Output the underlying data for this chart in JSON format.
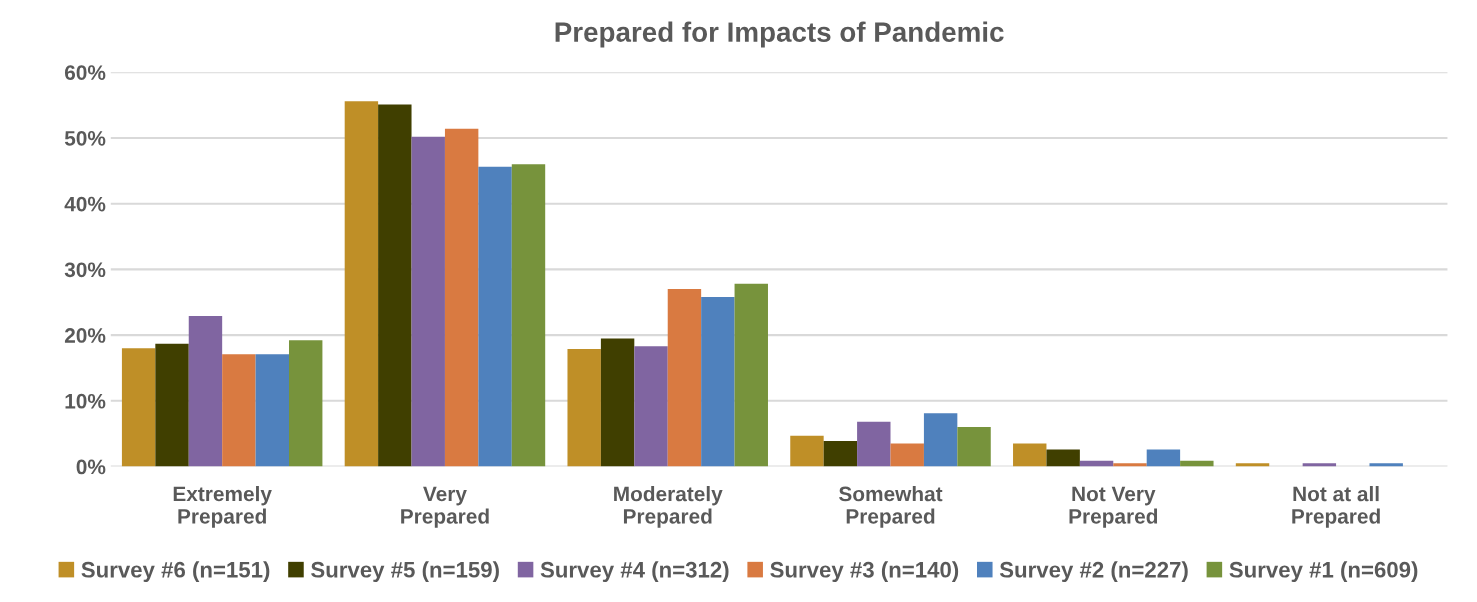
{
  "chart_data": {
    "type": "bar",
    "title": "Prepared for Impacts of Pandemic",
    "categories": [
      "Extremely\nPrepared",
      "Very\nPrepared",
      "Moderately\nPrepared",
      "Somewhat\nPrepared",
      "Not Very\nPrepared",
      "Not at all\nPrepared"
    ],
    "series": [
      {
        "name": "Survey #6 (n=151)",
        "color": "#bf8f27",
        "values": [
          18.0,
          55.6,
          17.9,
          4.7,
          3.5,
          0.5
        ]
      },
      {
        "name": "Survey #5 (n=159)",
        "color": "#403f00",
        "values": [
          18.7,
          55.1,
          19.5,
          3.9,
          2.6,
          0
        ]
      },
      {
        "name": "Survey #4 (n=312)",
        "color": "#8065a1",
        "values": [
          22.9,
          50.2,
          18.3,
          6.8,
          0.9,
          0.5
        ]
      },
      {
        "name": "Survey #3 (n=140)",
        "color": "#d97a41",
        "values": [
          17.1,
          51.4,
          27.0,
          3.5,
          0.5,
          0
        ]
      },
      {
        "name": "Survey #2 (n=227)",
        "color": "#4f81bd",
        "values": [
          17.1,
          45.6,
          25.8,
          8.1,
          2.6,
          0.5
        ]
      },
      {
        "name": "Survey #1 (n=609)",
        "color": "#77933c",
        "values": [
          19.2,
          46.0,
          27.8,
          6.0,
          0.9,
          0
        ]
      }
    ],
    "ylim": [
      0,
      60
    ],
    "yticks": [
      {
        "value": 0,
        "label": "0%"
      },
      {
        "value": 10,
        "label": "10%"
      },
      {
        "value": 20,
        "label": "20%"
      },
      {
        "value": 30,
        "label": "30%"
      },
      {
        "value": 40,
        "label": "40%"
      },
      {
        "value": 50,
        "label": "50%"
      },
      {
        "value": 60,
        "label": "60%"
      }
    ],
    "grid": "y",
    "legend": "bottom"
  }
}
